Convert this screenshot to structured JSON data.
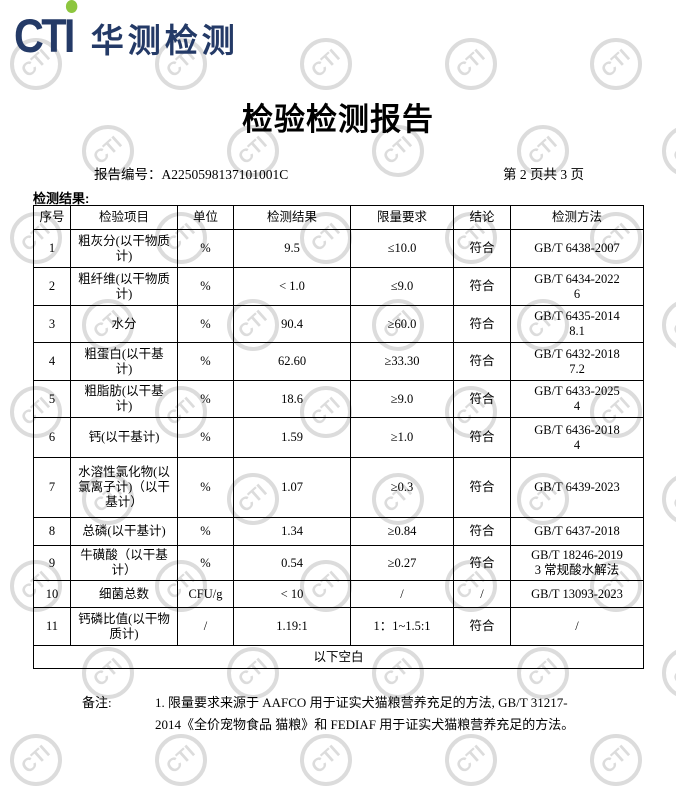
{
  "logo": {
    "latin": "CTI",
    "cn": "华测检测"
  },
  "colors": {
    "brand_navy": "#243a67",
    "brand_green": "#8dc63f",
    "watermark": "#dcdcdc"
  },
  "watermark_text": "CTI",
  "title": "检验检测报告",
  "report": {
    "label": "报告编号：",
    "number": "A2250598137101001C"
  },
  "page_info": "第 2 页共 3 页",
  "section_label": "检测结果:",
  "table": {
    "headers": [
      "序号",
      "检验项目",
      "单位",
      "检测结果",
      "限量要求",
      "结论",
      "检测方法"
    ],
    "rows": [
      {
        "no": "1",
        "item": [
          "粗灰分(以干物质",
          "计)"
        ],
        "unit": "%",
        "result": "9.5",
        "limit": "≤10.0",
        "conclusion": "符合",
        "method": [
          "GB/T 6438-2007"
        ]
      },
      {
        "no": "2",
        "item": [
          "粗纤维(以干物质",
          "计)"
        ],
        "unit": "%",
        "result": "< 1.0",
        "limit": "≤9.0",
        "conclusion": "符合",
        "method": [
          "GB/T 6434-2022",
          "6"
        ]
      },
      {
        "no": "3",
        "item": [
          "水分"
        ],
        "unit": "%",
        "result": "90.4",
        "limit": "≥60.0",
        "conclusion": "符合",
        "method": [
          "GB/T 6435-2014",
          "8.1"
        ]
      },
      {
        "no": "4",
        "item": [
          "粗蛋白(以干基",
          "计)"
        ],
        "unit": "%",
        "result": "62.60",
        "limit": "≥33.30",
        "conclusion": "符合",
        "method": [
          "GB/T 6432-2018",
          "7.2"
        ]
      },
      {
        "no": "5",
        "item": [
          "粗脂肪(以干基",
          "计)"
        ],
        "unit": "%",
        "result": "18.6",
        "limit": "≥9.0",
        "conclusion": "符合",
        "method": [
          "GB/T 6433-2025",
          "4"
        ]
      },
      {
        "no": "6",
        "item": [
          "钙(以干基计)"
        ],
        "unit": "%",
        "result": "1.59",
        "limit": "≥1.0",
        "conclusion": "符合",
        "method": [
          "GB/T 6436-2018",
          "4"
        ]
      },
      {
        "no": "7",
        "item": [
          "水溶性氯化物(以",
          "氯离子计)（以干",
          "基计）"
        ],
        "unit": "%",
        "result": "1.07",
        "limit": "≥0.3",
        "conclusion": "符合",
        "method": [
          "GB/T 6439-2023"
        ]
      },
      {
        "no": "8",
        "item": [
          "总磷(以干基计)"
        ],
        "unit": "%",
        "result": "1.34",
        "limit": "≥0.84",
        "conclusion": "符合",
        "method": [
          "GB/T 6437-2018"
        ]
      },
      {
        "no": "9",
        "item": [
          "牛磺酸（以干基",
          "计）"
        ],
        "unit": "%",
        "result": "0.54",
        "limit": "≥0.27",
        "conclusion": "符合",
        "method": [
          "GB/T 18246-2019",
          "3  常规酸水解法"
        ]
      },
      {
        "no": "10",
        "item": [
          "细菌总数"
        ],
        "unit": "CFU/g",
        "result": "< 10",
        "limit": "/",
        "conclusion": "/",
        "method": [
          "GB/T 13093-2023"
        ]
      },
      {
        "no": "11",
        "item": [
          "钙磷比值(以干物",
          "质计)"
        ],
        "unit": "/",
        "result": "1.19:1",
        "limit": "1：1~1.5:1",
        "conclusion": "符合",
        "method": [
          "/"
        ]
      }
    ],
    "footer": "以下空白"
  },
  "remarks": {
    "label": "备注:",
    "lines": [
      "1. 限量要求来源于  AAFCO  用于证实犬猫粮营养充足的方法, GB/T 31217-",
      "2014《全价宠物食品 猫粮》和 FEDIAF 用于证实犬猫粮营养充足的方法。"
    ]
  }
}
